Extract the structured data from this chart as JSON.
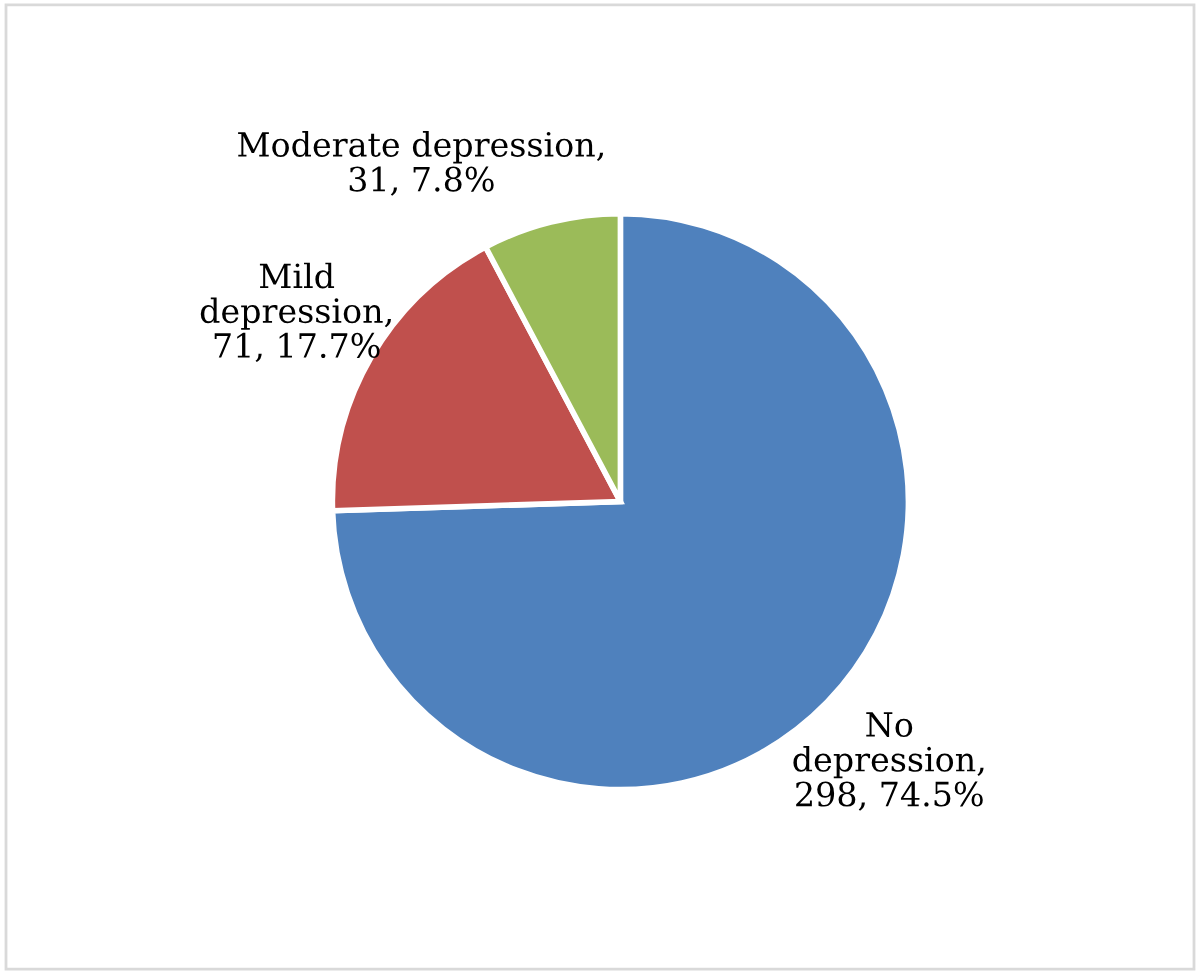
{
  "chart_data": {
    "type": "pie",
    "categories": [
      "No depression",
      "Mild depression",
      "Moderate depression"
    ],
    "values": [
      298,
      71,
      31
    ],
    "colors": [
      "#4f81bd",
      "#c0504d",
      "#9bbb59"
    ],
    "value_labels": [
      ", 298, 74.5%",
      ", 71, 17.7%",
      ", 31, 7.8%"
    ]
  }
}
